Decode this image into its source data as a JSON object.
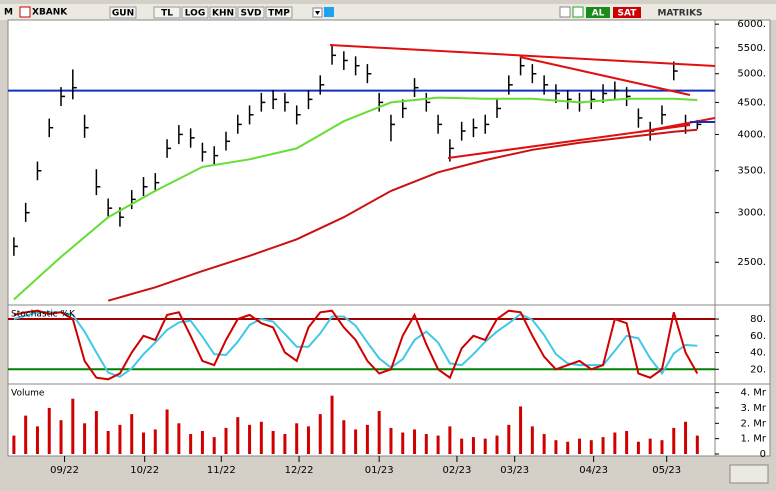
{
  "toolbar": {
    "symbol_prefix": "M",
    "symbol": "XBANK",
    "buttons": [
      "GUN",
      "TL",
      "LOG",
      "KHN",
      "SVD",
      "TMP"
    ],
    "actions": [
      "AL",
      "SAT"
    ],
    "brand": "MATRIKS"
  },
  "chart_data": [
    {
      "type": "ohlc",
      "log_scale": true,
      "color": "#000000",
      "xlim": [
        -0.5,
        59.5
      ],
      "xticks": [
        {
          "value": 4.3,
          "label": "09/22"
        },
        {
          "value": 11.1,
          "label": "10/22"
        },
        {
          "value": 17.6,
          "label": "11/22"
        },
        {
          "value": 24.2,
          "label": "12/22"
        },
        {
          "value": 31.0,
          "label": "01/23"
        },
        {
          "value": 37.6,
          "label": "02/23"
        },
        {
          "value": 42.5,
          "label": "03/23"
        },
        {
          "value": 49.2,
          "label": "04/23"
        },
        {
          "value": 55.4,
          "label": "05/23"
        }
      ],
      "ylim": [
        2160,
        6070
      ],
      "yticks": [
        {
          "value": 2500,
          "label": "2500."
        },
        {
          "value": 3000,
          "label": "3000."
        },
        {
          "value": 3500,
          "label": "3500."
        },
        {
          "value": 4000,
          "label": "4000."
        },
        {
          "value": 4500,
          "label": "4500."
        },
        {
          "value": 5000,
          "label": "5000."
        },
        {
          "value": 5500,
          "label": "5500."
        },
        {
          "value": 6000,
          "label": "6000."
        }
      ],
      "high": [
        2740,
        3110,
        3620,
        4240,
        4760,
        5080,
        4300,
        3520,
        3160,
        3060,
        3260,
        3420,
        3470,
        3930,
        4140,
        4090,
        3880,
        3830,
        4040,
        4300,
        4450,
        4660,
        4710,
        4660,
        4450,
        4710,
        4970,
        5540,
        5430,
        5330,
        5180,
        4660,
        4300,
        4550,
        4920,
        4660,
        4300,
        3930,
        4190,
        4240,
        4300,
        4550,
        4970,
        5330,
        5180,
        4970,
        4810,
        4710,
        4660,
        4710,
        4810,
        4860,
        4760,
        4400,
        4190,
        4450,
        5230,
        4300,
        4220
      ],
      "low": [
        2560,
        2900,
        3380,
        3960,
        4440,
        4550,
        3950,
        3200,
        2940,
        2850,
        3040,
        3190,
        3240,
        3670,
        3860,
        3810,
        3620,
        3570,
        3770,
        4010,
        4150,
        4350,
        4390,
        4350,
        4150,
        4390,
        4630,
        5170,
        5070,
        4970,
        4830,
        4350,
        3900,
        4250,
        4590,
        4350,
        4010,
        3620,
        3910,
        3960,
        4010,
        4250,
        4630,
        4970,
        4830,
        4630,
        4490,
        4390,
        4350,
        4390,
        4490,
        4540,
        4440,
        4100,
        3910,
        4150,
        4880,
        4010,
        4080
      ],
      "close": [
        2650,
        3000,
        3500,
        4100,
        4600,
        4750,
        4100,
        3300,
        3050,
        2950,
        3150,
        3300,
        3350,
        3800,
        4000,
        3950,
        3750,
        3700,
        3900,
        4150,
        4300,
        4500,
        4550,
        4500,
        4300,
        4550,
        4800,
        5350,
        5250,
        5150,
        5000,
        4500,
        4150,
        4400,
        4750,
        4500,
        4150,
        3800,
        4050,
        4100,
        4150,
        4400,
        4800,
        5150,
        5000,
        4800,
        4650,
        4550,
        4500,
        4550,
        4650,
        4700,
        4600,
        4250,
        4050,
        4300,
        5050,
        4150,
        4150
      ],
      "series": [
        {
          "color": "#66dd33",
          "x": [
            0,
            4,
            8,
            12,
            16,
            20,
            24,
            28,
            32,
            36,
            40,
            44,
            48,
            52,
            56,
            58
          ],
          "values": [
            2180,
            2550,
            2950,
            3250,
            3550,
            3650,
            3800,
            4200,
            4500,
            4580,
            4560,
            4560,
            4500,
            4560,
            4560,
            4540
          ]
        },
        {
          "color": "#cc1111",
          "x": [
            8,
            12,
            16,
            20,
            24,
            28,
            32,
            36,
            40,
            44,
            48,
            52,
            56,
            58
          ],
          "values": [
            2170,
            2280,
            2420,
            2560,
            2720,
            2950,
            3250,
            3480,
            3640,
            3780,
            3880,
            3960,
            4040,
            4070
          ]
        }
      ],
      "hlines": [
        {
          "value": 4700,
          "color": "#1030c0"
        }
      ]
    },
    {
      "type": "line",
      "title": "Stochastic %K",
      "ylim": [
        6,
        92
      ],
      "yticks": [
        {
          "value": 20,
          "label": "20."
        },
        {
          "value": 40,
          "label": "40."
        },
        {
          "value": 60,
          "label": "60."
        },
        {
          "value": 80,
          "label": "80."
        }
      ],
      "hlines": [
        {
          "value": 80,
          "color": "#a00000"
        },
        {
          "value": 20,
          "color": "#008000"
        }
      ],
      "series": [
        {
          "color": "#40c8e8",
          "values": [
            80,
            84,
            88,
            88,
            88,
            85,
            65,
            40,
            16,
            11,
            21,
            38,
            52,
            67,
            76,
            78,
            59,
            38,
            37,
            53,
            73,
            80,
            77,
            62,
            47,
            47,
            63,
            83,
            83,
            72,
            52,
            33,
            22,
            32,
            55,
            65,
            52,
            27,
            25,
            38,
            53,
            65,
            75,
            86,
            79,
            61,
            38,
            27,
            25,
            25,
            25,
            42,
            60,
            57,
            33,
            15,
            39,
            49,
            48
          ]
        },
        {
          "color": "#d00000",
          "values": [
            85,
            88,
            90,
            86,
            88,
            80,
            30,
            10,
            8,
            15,
            40,
            60,
            55,
            85,
            88,
            60,
            30,
            25,
            55,
            80,
            85,
            75,
            70,
            40,
            30,
            70,
            88,
            90,
            70,
            55,
            30,
            15,
            20,
            60,
            85,
            50,
            20,
            10,
            45,
            60,
            55,
            80,
            90,
            88,
            60,
            35,
            20,
            25,
            30,
            20,
            25,
            80,
            75,
            15,
            10,
            20,
            88,
            40,
            15
          ]
        }
      ]
    },
    {
      "type": "bar",
      "title": "Volume",
      "color": "#d00000",
      "ylim": [
        0,
        4.3
      ],
      "yticks": [
        0,
        {
          "value": 1,
          "label": "1. Mr"
        },
        {
          "value": 2,
          "label": "2. Mr"
        },
        {
          "value": 3,
          "label": "3. Mr"
        },
        {
          "value": 4,
          "label": "4. Mr"
        }
      ],
      "values": [
        1.2,
        2.5,
        1.8,
        3.0,
        2.2,
        3.6,
        2.0,
        2.8,
        1.5,
        1.9,
        2.6,
        1.4,
        1.6,
        2.9,
        2.0,
        1.3,
        1.5,
        1.1,
        1.7,
        2.4,
        1.9,
        2.1,
        1.5,
        1.3,
        2.0,
        1.8,
        2.6,
        3.8,
        2.2,
        1.6,
        1.9,
        2.8,
        1.7,
        1.4,
        1.6,
        1.3,
        1.2,
        1.8,
        1.0,
        1.1,
        1.0,
        1.2,
        1.9,
        3.1,
        1.8,
        1.3,
        0.9,
        0.8,
        1.0,
        0.9,
        1.1,
        1.4,
        1.5,
        0.8,
        1.0,
        0.9,
        1.7,
        2.1,
        1.2
      ]
    }
  ]
}
